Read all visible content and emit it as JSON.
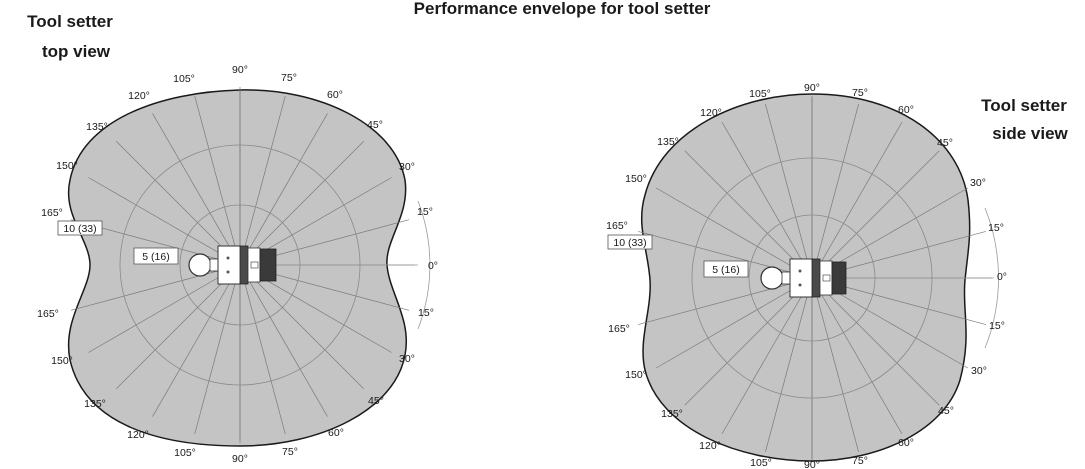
{
  "main_title": "Performance envelope for tool setter",
  "top_view": {
    "label_line1": "Tool setter",
    "label_line2": "top view",
    "range_outer": "10 (33)",
    "range_inner": "5 (16)",
    "angle_labels_upper": [
      "0°",
      "15°",
      "30°",
      "45°",
      "60°",
      "75°",
      "90°",
      "105°",
      "120°",
      "135°",
      "150°",
      "165°"
    ],
    "angle_labels_lower": [
      "15°",
      "30°",
      "45°",
      "60°",
      "75°",
      "90°",
      "105°",
      "120°",
      "135°",
      "150°",
      "165°"
    ]
  },
  "side_view": {
    "label_line1": "Tool setter",
    "label_line2": "side view",
    "range_outer": "10 (33)",
    "range_inner": "5 (16)",
    "angle_labels_upper": [
      "0°",
      "15°",
      "30°",
      "45°",
      "60°",
      "75°",
      "90°",
      "105°",
      "120°",
      "135°",
      "150°",
      "165°"
    ],
    "angle_labels_lower": [
      "15°",
      "30°",
      "45°",
      "60°",
      "75°",
      "90°",
      "105°",
      "120°",
      "135°",
      "150°",
      "165°"
    ]
  },
  "colors": {
    "envelope_fill": "#c4c4c4",
    "outline": "#1a1a1a"
  }
}
